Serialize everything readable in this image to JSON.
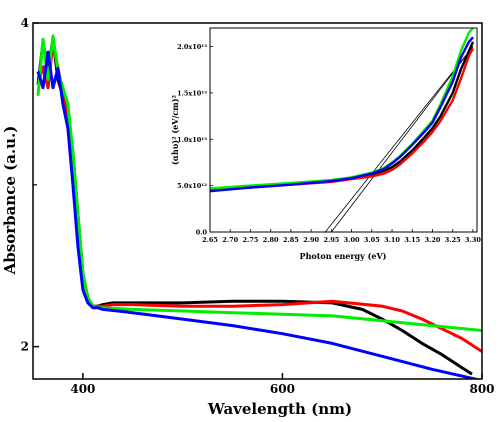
{
  "chart_data": [
    {
      "id": "main",
      "type": "line",
      "title": "",
      "xlabel": "Wavelength (nm)",
      "ylabel": "Absorbance (a.u.)",
      "xlim": [
        350,
        800
      ],
      "ylim": [
        1.8,
        4.0
      ],
      "x_ticks": [
        400,
        600,
        800
      ],
      "y_ticks": [
        2,
        4
      ],
      "y_minor_ticks": [
        3
      ],
      "series": [
        {
          "color": "#000000",
          "x": [
            355,
            360,
            365,
            370,
            375,
            380,
            385,
            390,
            395,
            400,
            405,
            410,
            415,
            420,
            430,
            450,
            500,
            550,
            600,
            650,
            680,
            700,
            720,
            740,
            760,
            780,
            790
          ],
          "values": [
            3.62,
            3.88,
            3.72,
            3.9,
            3.65,
            3.55,
            3.45,
            3.2,
            2.82,
            2.45,
            2.3,
            2.25,
            2.25,
            2.26,
            2.27,
            2.27,
            2.27,
            2.28,
            2.28,
            2.27,
            2.23,
            2.17,
            2.1,
            2.02,
            1.95,
            1.87,
            1.83
          ]
        },
        {
          "color": "#ff0000",
          "x": [
            355,
            360,
            365,
            370,
            375,
            380,
            385,
            390,
            395,
            400,
            405,
            410,
            415,
            420,
            430,
            450,
            500,
            550,
            600,
            650,
            700,
            720,
            740,
            760,
            780,
            800
          ],
          "values": [
            3.62,
            3.73,
            3.6,
            3.88,
            3.72,
            3.58,
            3.42,
            3.1,
            2.7,
            2.38,
            2.28,
            2.25,
            2.25,
            2.25,
            2.26,
            2.26,
            2.25,
            2.25,
            2.26,
            2.28,
            2.25,
            2.22,
            2.17,
            2.11,
            2.05,
            1.97
          ]
        },
        {
          "color": "#00ee00",
          "x": [
            355,
            360,
            365,
            370,
            375,
            380,
            385,
            390,
            395,
            400,
            405,
            410,
            415,
            420,
            450,
            500,
            550,
            600,
            650,
            700,
            750,
            800
          ],
          "values": [
            3.55,
            3.9,
            3.65,
            3.92,
            3.7,
            3.6,
            3.5,
            3.2,
            2.82,
            2.45,
            2.3,
            2.25,
            2.24,
            2.24,
            2.23,
            2.22,
            2.21,
            2.2,
            2.19,
            2.16,
            2.13,
            2.1
          ]
        },
        {
          "color": "#0000ff",
          "x": [
            355,
            360,
            365,
            370,
            375,
            380,
            385,
            390,
            395,
            400,
            405,
            410,
            415,
            420,
            450,
            500,
            550,
            600,
            650,
            700,
            750,
            800
          ],
          "values": [
            3.7,
            3.6,
            3.82,
            3.6,
            3.72,
            3.5,
            3.35,
            3.0,
            2.62,
            2.35,
            2.27,
            2.24,
            2.24,
            2.23,
            2.21,
            2.17,
            2.13,
            2.08,
            2.02,
            1.94,
            1.86,
            1.79
          ]
        }
      ]
    },
    {
      "id": "inset",
      "type": "line",
      "title": "",
      "xlabel": "Photon energy (eV)",
      "ylabel": "(αhυ)² (eV/cm)²",
      "xlim": [
        2.65,
        3.31
      ],
      "ylim": [
        0,
        22000000000000.0
      ],
      "x_tick_labels": [
        "2.65",
        "2.70",
        "2.75",
        "2.80",
        "2.85",
        "2.90",
        "2.95",
        "3.00",
        "3.05",
        "3.10",
        "3.15",
        "3.20",
        "3.25",
        "3.30"
      ],
      "y_tick_labels": [
        "0.0",
        "5.0x10¹²",
        "1.0x10¹³",
        "1.5x10¹³",
        "2.0x10¹³"
      ],
      "y_tick_values": [
        0,
        5000000000000.0,
        10000000000000.0,
        15000000000000.0,
        20000000000000.0
      ],
      "series": [
        {
          "color": "#000000",
          "x": [
            2.65,
            2.75,
            2.85,
            2.95,
            3.0,
            3.05,
            3.08,
            3.1,
            3.12,
            3.15,
            3.18,
            3.2,
            3.22,
            3.25,
            3.27,
            3.29,
            3.3
          ],
          "values": [
            4600000000000.0,
            4900000000000.0,
            5200000000000.0,
            5500000000000.0,
            5800000000000.0,
            6200000000000.0,
            6600000000000.0,
            7000000000000.0,
            7600000000000.0,
            8800000000000.0,
            10200000000000.0,
            11200000000000.0,
            12500000000000.0,
            15000000000000.0,
            17500000000000.0,
            19500000000000.0,
            20500000000000.0
          ]
        },
        {
          "color": "#ff0000",
          "x": [
            2.65,
            2.75,
            2.85,
            2.95,
            3.0,
            3.05,
            3.08,
            3.1,
            3.12,
            3.15,
            3.18,
            3.2,
            3.22,
            3.25,
            3.27,
            3.29,
            3.3
          ],
          "values": [
            4500000000000.0,
            4800000000000.0,
            5100000000000.0,
            5400000000000.0,
            5700000000000.0,
            6000000000000.0,
            6300000000000.0,
            6700000000000.0,
            7300000000000.0,
            8500000000000.0,
            9800000000000.0,
            10800000000000.0,
            12000000000000.0,
            14200000000000.0,
            16500000000000.0,
            19000000000000.0,
            19800000000000.0
          ]
        },
        {
          "color": "#00ee00",
          "x": [
            2.65,
            2.75,
            2.85,
            2.95,
            3.0,
            3.05,
            3.08,
            3.1,
            3.12,
            3.15,
            3.18,
            3.2,
            3.22,
            3.25,
            3.27,
            3.29,
            3.3
          ],
          "values": [
            4700000000000.0,
            5000000000000.0,
            5300000000000.0,
            5600000000000.0,
            5900000000000.0,
            6400000000000.0,
            6900000000000.0,
            7500000000000.0,
            8200000000000.0,
            9500000000000.0,
            11000000000000.0,
            12000000000000.0,
            13800000000000.0,
            16800000000000.0,
            19500000000000.0,
            21500000000000.0,
            22000000000000.0
          ]
        },
        {
          "color": "#0000ff",
          "x": [
            2.65,
            2.75,
            2.85,
            2.95,
            3.0,
            3.05,
            3.08,
            3.1,
            3.12,
            3.15,
            3.18,
            3.2,
            3.22,
            3.25,
            3.27,
            3.29,
            3.3
          ],
          "values": [
            4400000000000.0,
            4800000000000.0,
            5100000000000.0,
            5500000000000.0,
            5800000000000.0,
            6300000000000.0,
            6800000000000.0,
            7400000000000.0,
            8100000000000.0,
            9400000000000.0,
            10800000000000.0,
            11800000000000.0,
            13500000000000.0,
            16200000000000.0,
            18800000000000.0,
            20500000000000.0,
            21000000000000.0
          ]
        }
      ],
      "tangents": [
        {
          "color": "#000000",
          "x": [
            2.935,
            3.3
          ],
          "values": [
            0,
            20000000000000.0
          ]
        },
        {
          "color": "#000000",
          "x": [
            2.95,
            3.3
          ],
          "values": [
            0,
            20000000000000.0
          ]
        }
      ]
    }
  ]
}
